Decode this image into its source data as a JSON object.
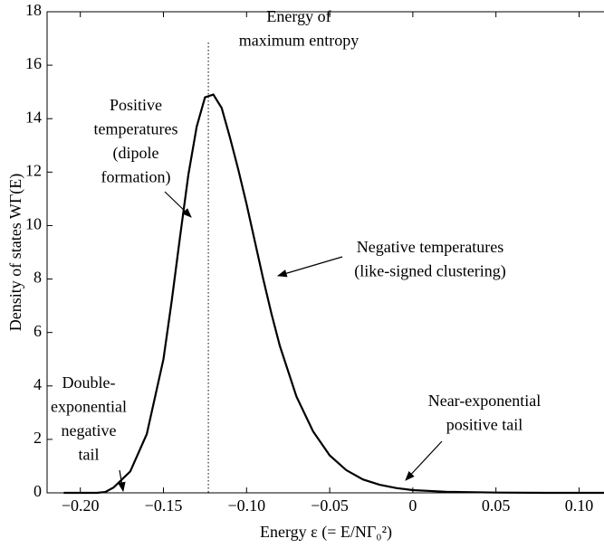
{
  "chart_data": {
    "type": "line",
    "x_label": "Energy ε (= E/NΓ₀²)",
    "y_label": "Density of states WΓ(E)",
    "xlim": [
      -0.22,
      0.115
    ],
    "ylim": [
      0,
      18
    ],
    "xticks": [
      {
        "value": -0.2,
        "label": "−0.20"
      },
      {
        "value": -0.15,
        "label": "−0.15"
      },
      {
        "value": -0.1,
        "label": "−0.10"
      },
      {
        "value": -0.05,
        "label": "−0.05"
      },
      0,
      0.05,
      {
        "value": 0.1,
        "label": "0.10"
      }
    ],
    "yticks": [
      0,
      2,
      4,
      6,
      8,
      10,
      12,
      14,
      16,
      18
    ],
    "vline": -0.123,
    "series": [
      {
        "color": "#000000",
        "x": [
          -0.21,
          -0.19,
          -0.185,
          -0.18,
          -0.17,
          -0.16,
          -0.15,
          -0.145,
          -0.14,
          -0.135,
          -0.13,
          -0.125,
          -0.12,
          -0.115,
          -0.11,
          -0.105,
          -0.1,
          -0.095,
          -0.09,
          -0.085,
          -0.08,
          -0.07,
          -0.06,
          -0.05,
          -0.04,
          -0.03,
          -0.02,
          -0.01,
          0,
          0.02,
          0.05,
          0.08,
          0.115
        ],
        "values": [
          0,
          0,
          0.03,
          0.2,
          0.8,
          2.2,
          5.0,
          7.2,
          9.6,
          11.9,
          13.7,
          14.8,
          14.9,
          14.4,
          13.3,
          12.1,
          10.8,
          9.4,
          8.0,
          6.7,
          5.5,
          3.6,
          2.3,
          1.4,
          0.85,
          0.5,
          0.3,
          0.18,
          0.1,
          0.04,
          0.01,
          0,
          0
        ]
      }
    ],
    "annotations": [
      {
        "lines": [
          "Energy of",
          "maximum entropy"
        ]
      },
      {
        "lines": [
          "Positive",
          "temperatures",
          "(dipole",
          "formation)"
        ]
      },
      {
        "lines": [
          "Negative temperatures",
          "(like-signed clustering)"
        ]
      },
      {
        "lines": [
          "Double-",
          "exponential",
          "negative",
          "tail"
        ]
      },
      {
        "lines": [
          "Near-exponential",
          "positive tail"
        ]
      }
    ]
  }
}
